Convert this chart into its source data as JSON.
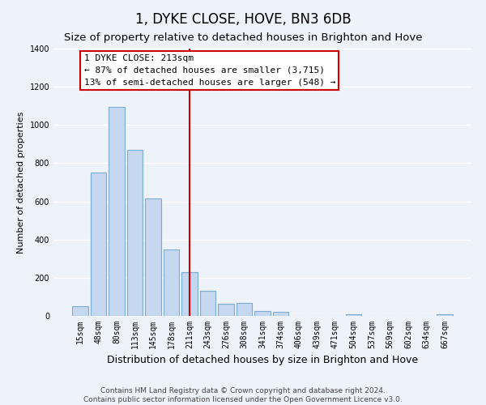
{
  "title": "1, DYKE CLOSE, HOVE, BN3 6DB",
  "subtitle": "Size of property relative to detached houses in Brighton and Hove",
  "xlabel": "Distribution of detached houses by size in Brighton and Hove",
  "ylabel": "Number of detached properties",
  "bar_labels": [
    "15sqm",
    "48sqm",
    "80sqm",
    "113sqm",
    "145sqm",
    "178sqm",
    "211sqm",
    "243sqm",
    "276sqm",
    "308sqm",
    "341sqm",
    "374sqm",
    "406sqm",
    "439sqm",
    "471sqm",
    "504sqm",
    "537sqm",
    "569sqm",
    "602sqm",
    "634sqm",
    "667sqm"
  ],
  "bar_values": [
    52,
    750,
    1095,
    870,
    615,
    350,
    230,
    130,
    65,
    70,
    25,
    20,
    0,
    0,
    0,
    10,
    0,
    0,
    0,
    0,
    10
  ],
  "bar_color": "#c5d8ef",
  "bar_edge_color": "#7aadd4",
  "vline_x_index": 6,
  "vline_color": "#cc0000",
  "annotation_title": "1 DYKE CLOSE: 213sqm",
  "annotation_line1": "← 87% of detached houses are smaller (3,715)",
  "annotation_line2": "13% of semi-detached houses are larger (548) →",
  "annotation_box_facecolor": "#ffffff",
  "annotation_box_edgecolor": "#cc0000",
  "ylim": [
    0,
    1400
  ],
  "yticks": [
    0,
    200,
    400,
    600,
    800,
    1000,
    1200,
    1400
  ],
  "footer_line1": "Contains HM Land Registry data © Crown copyright and database right 2024.",
  "footer_line2": "Contains public sector information licensed under the Open Government Licence v3.0.",
  "bg_color": "#eef2f9",
  "grid_color": "#ffffff",
  "title_fontsize": 12,
  "subtitle_fontsize": 9.5,
  "xlabel_fontsize": 9,
  "ylabel_fontsize": 8,
  "tick_fontsize": 7,
  "annotation_fontsize": 8,
  "footer_fontsize": 6.5
}
